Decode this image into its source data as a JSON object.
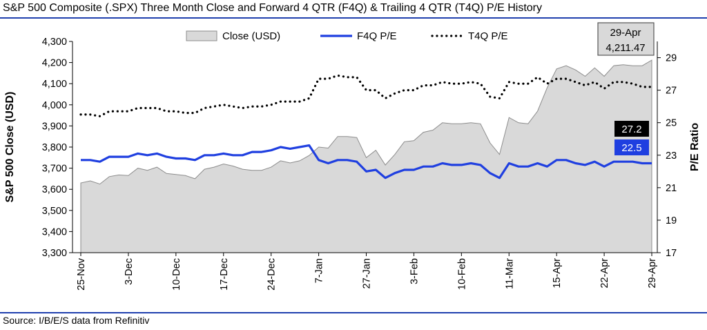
{
  "title": "S&P 500 Composite (.SPX) Three Month Close and Forward 4 QTR (F4Q) & Trailing 4 QTR (T4Q) P/E History",
  "source": "Source: I/B/E/S data from Refinitiv",
  "colors": {
    "rule": "#1f3fae",
    "area_fill": "#d9d9d9",
    "area_stroke": "#8c8c8c",
    "f4q": "#1f3fe0",
    "t4q": "#000000",
    "badge_dark": "#000000",
    "badge_blue": "#1f3fe0",
    "callout_bg": "#d9d9d9"
  },
  "chart_data": {
    "type": "line",
    "title": "S&P 500 Composite (.SPX) Three Month Close and Forward 4 QTR (F4Q) & Trailing 4 QTR (T4Q) P/E History",
    "ylabel": "S&P 500 Close (USD)",
    "y2label": "P/E Ratio",
    "ylim": [
      3300,
      4300
    ],
    "y2lim": [
      17,
      30
    ],
    "yticks": [
      "3,300",
      "3,400",
      "3,500",
      "3,600",
      "3,700",
      "3,800",
      "3,900",
      "4,000",
      "4,100",
      "4,200",
      "4,300"
    ],
    "y2ticks": [
      "17",
      "19",
      "21",
      "23",
      "25",
      "27",
      "29"
    ],
    "xticks": [
      "25-Nov",
      "3-Dec",
      "10-Dec",
      "17-Dec",
      "24-Dec",
      "7-Jan",
      "27-Jan",
      "3-Feb",
      "10-Feb",
      "11-Mar",
      "15-Apr",
      "22-Apr",
      "29-Apr"
    ],
    "grid": false,
    "legend": "top",
    "series": [
      {
        "name": "Close (USD)",
        "type": "area",
        "axis": "left",
        "values": [
          3630,
          3640,
          3625,
          3660,
          3668,
          3665,
          3700,
          3690,
          3705,
          3675,
          3670,
          3665,
          3650,
          3695,
          3705,
          3720,
          3710,
          3695,
          3690,
          3690,
          3705,
          3735,
          3725,
          3735,
          3760,
          3800,
          3795,
          3850,
          3850,
          3845,
          3750,
          3785,
          3715,
          3765,
          3825,
          3830,
          3870,
          3880,
          3915,
          3910,
          3910,
          3915,
          3910,
          3820,
          3765,
          3940,
          3915,
          3910,
          3970,
          4080,
          4170,
          4185,
          4165,
          4135,
          4175,
          4135,
          4185,
          4190,
          4185,
          4185,
          4211.47
        ]
      },
      {
        "name": "F4Q P/E",
        "type": "line",
        "axis": "right",
        "values": [
          22.7,
          22.7,
          22.6,
          22.9,
          22.9,
          22.9,
          23.1,
          23.0,
          23.1,
          22.9,
          22.8,
          22.8,
          22.7,
          23.0,
          23.0,
          23.1,
          23.0,
          23.0,
          23.2,
          23.2,
          23.3,
          23.5,
          23.4,
          23.5,
          23.6,
          22.7,
          22.5,
          22.7,
          22.7,
          22.6,
          22.0,
          22.1,
          21.6,
          21.9,
          22.1,
          22.1,
          22.3,
          22.3,
          22.5,
          22.4,
          22.4,
          22.5,
          22.4,
          21.9,
          21.6,
          22.5,
          22.3,
          22.3,
          22.5,
          22.3,
          22.7,
          22.7,
          22.5,
          22.4,
          22.6,
          22.3,
          22.6,
          22.6,
          22.6,
          22.5,
          22.5
        ]
      },
      {
        "name": "T4Q P/E",
        "type": "line",
        "axis": "right",
        "values": [
          25.5,
          25.5,
          25.4,
          25.7,
          25.7,
          25.7,
          25.9,
          25.9,
          25.9,
          25.7,
          25.7,
          25.6,
          25.6,
          25.9,
          26.0,
          26.1,
          26.0,
          25.9,
          26.0,
          26.0,
          26.1,
          26.3,
          26.3,
          26.3,
          26.5,
          27.7,
          27.7,
          27.9,
          27.8,
          27.8,
          27.0,
          27.0,
          26.5,
          26.8,
          27.0,
          27.0,
          27.3,
          27.3,
          27.5,
          27.4,
          27.4,
          27.5,
          27.4,
          26.6,
          26.5,
          27.5,
          27.4,
          27.4,
          27.8,
          27.4,
          27.7,
          27.7,
          27.5,
          27.3,
          27.5,
          27.1,
          27.5,
          27.5,
          27.4,
          27.2,
          27.2
        ]
      }
    ],
    "annotations": {
      "callout_date": "29-Apr",
      "callout_value": "4,211.47",
      "t4q_last": "27.2",
      "f4q_last": "22.5"
    }
  }
}
